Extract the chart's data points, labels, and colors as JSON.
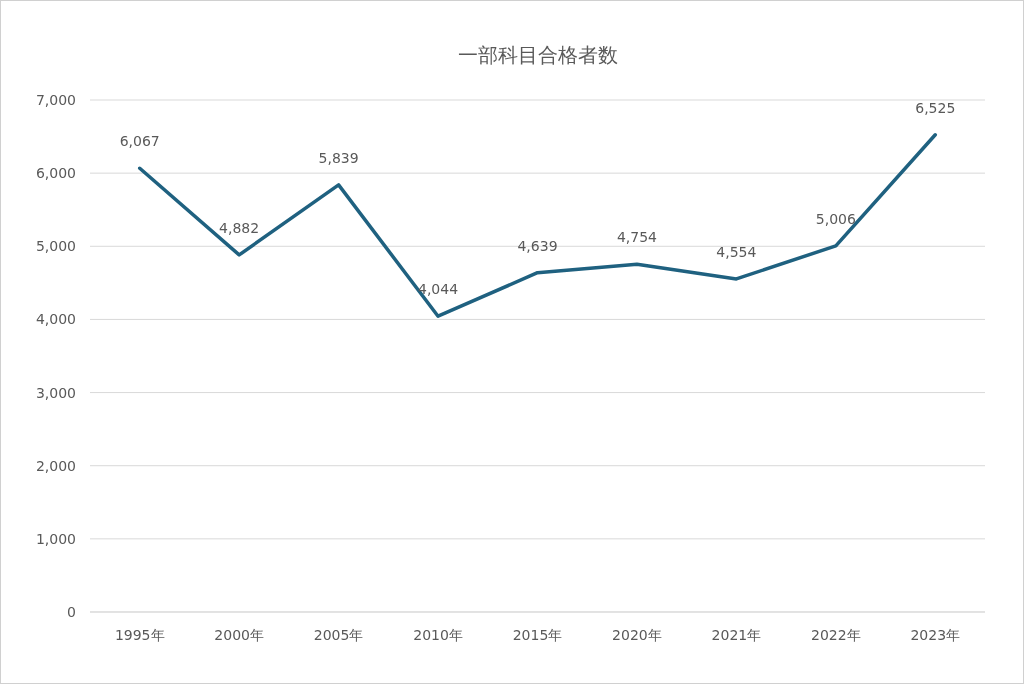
{
  "chart_data": {
    "type": "line",
    "title": "一部科目合格者数",
    "categories": [
      "1995年",
      "2000年",
      "2005年",
      "2010年",
      "2015年",
      "2020年",
      "2021年",
      "2022年",
      "2023年"
    ],
    "values": [
      6067,
      4882,
      5839,
      4044,
      4639,
      4754,
      4554,
      5006,
      6525
    ],
    "value_labels": [
      "6,067",
      "4,882",
      "5,839",
      "4,044",
      "4,639",
      "4,754",
      "4,554",
      "5,006",
      "6,525"
    ],
    "color": "#1f6180",
    "ylim": [
      0,
      7000
    ],
    "yticks": [
      {
        "value": 0,
        "label": "0"
      },
      {
        "value": 1000,
        "label": "1,000"
      },
      {
        "value": 2000,
        "label": "2,000"
      },
      {
        "value": 3000,
        "label": "3,000"
      },
      {
        "value": 4000,
        "label": "4,000"
      },
      {
        "value": 5000,
        "label": "5,000"
      },
      {
        "value": 6000,
        "label": "6,000"
      },
      {
        "value": 7000,
        "label": "7,000"
      }
    ],
    "grid": "y"
  }
}
